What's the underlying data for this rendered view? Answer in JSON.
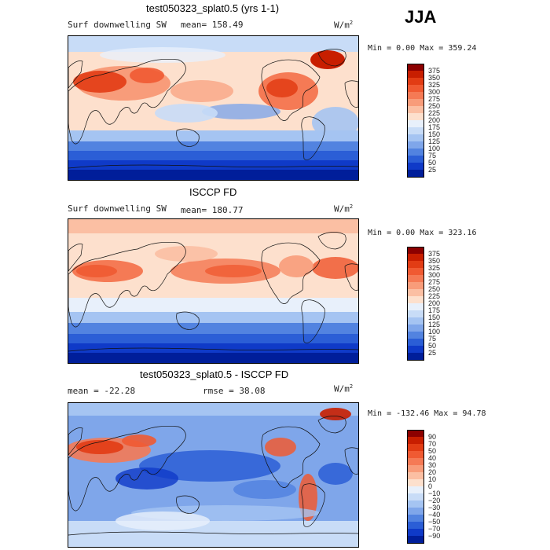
{
  "season": "JJA",
  "panels": [
    {
      "id": "model",
      "title": "test050323_splat0.5 (yrs 1-1)",
      "left_label": "Surf downwelling SW",
      "stat_label": "mean= 158.49",
      "units_base": "W/m",
      "units_exp": "2",
      "minmax": "Min =   0.00 Max = 359.24",
      "colorbar": {
        "labels": [
          "375",
          "350",
          "325",
          "300",
          "275",
          "250",
          "225",
          "200",
          "175",
          "150",
          "125",
          "100",
          "75",
          "50",
          "25"
        ],
        "colors": [
          "#8c0000",
          "#c81e00",
          "#e23c14",
          "#f05a32",
          "#f57a55",
          "#f89c7a",
          "#fbbfa3",
          "#fde0cd",
          "#e8f0fb",
          "#c8dcf7",
          "#a5c4f2",
          "#7fa6ea",
          "#5283e0",
          "#2b5ed6",
          "#0f3ac8",
          "#001e9a"
        ]
      }
    },
    {
      "id": "obs",
      "title": "ISCCP FD",
      "left_label": "Surf downwelling SW",
      "stat_label": "mean= 180.77",
      "units_base": "W/m",
      "units_exp": "2",
      "minmax": "Min =   0.00 Max = 323.16",
      "colorbar": {
        "labels": [
          "375",
          "350",
          "325",
          "300",
          "275",
          "250",
          "225",
          "200",
          "175",
          "150",
          "125",
          "100",
          "75",
          "50",
          "25"
        ],
        "colors": [
          "#8c0000",
          "#c81e00",
          "#e23c14",
          "#f05a32",
          "#f57a55",
          "#f89c7a",
          "#fbbfa3",
          "#fde0cd",
          "#e8f0fb",
          "#c8dcf7",
          "#a5c4f2",
          "#7fa6ea",
          "#5283e0",
          "#2b5ed6",
          "#0f3ac8",
          "#001e9a"
        ]
      }
    },
    {
      "id": "diff",
      "title": "test050323_splat0.5 - ISCCP FD",
      "left_label": "mean = -22.28",
      "stat_label": "rmse =  38.08",
      "units_base": "W/m",
      "units_exp": "2",
      "minmax": "Min = -132.46 Max =  94.78",
      "colorbar": {
        "labels": [
          "90",
          "70",
          "50",
          "40",
          "30",
          "20",
          "10",
          "0",
          "−10",
          "−20",
          "−30",
          "−40",
          "−50",
          "−70",
          "−90"
        ],
        "colors": [
          "#8c0000",
          "#c81e00",
          "#e23c14",
          "#f05a32",
          "#f57a55",
          "#f89c7a",
          "#fbbfa3",
          "#fde0cd",
          "#e8f0fb",
          "#c8dcf7",
          "#a5c4f2",
          "#7fa6ea",
          "#5283e0",
          "#2b5ed6",
          "#0f3ac8",
          "#001e9a"
        ]
      }
    }
  ]
}
